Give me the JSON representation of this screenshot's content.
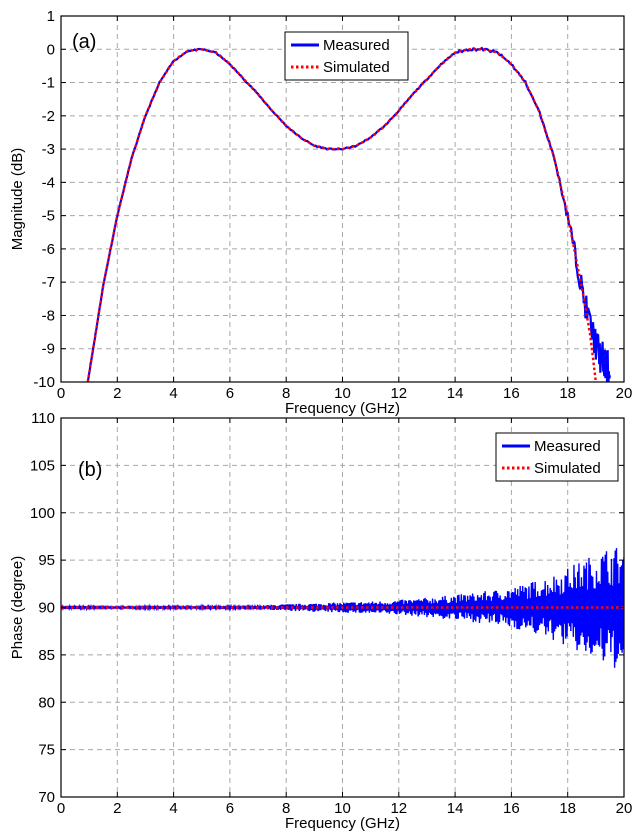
{
  "chart_data": [
    {
      "type": "line",
      "panel_label": "(a)",
      "xlabel": "Frequency (GHz)",
      "ylabel": "Magnitude (dB)",
      "xlim": [
        0,
        20
      ],
      "ylim": [
        -10,
        1
      ],
      "xticks": [
        0,
        2,
        4,
        6,
        8,
        10,
        12,
        14,
        16,
        18,
        20
      ],
      "yticks": [
        -10,
        -9,
        -8,
        -7,
        -6,
        -5,
        -4,
        -3,
        -2,
        -1,
        0,
        1
      ],
      "grid": true,
      "legend_position": "top-center",
      "series": [
        {
          "name": "Measured",
          "color": "#0000ff",
          "style": "solid",
          "x": [
            0.95,
            1.2,
            1.5,
            2.0,
            2.5,
            3.0,
            3.5,
            4.0,
            4.5,
            5.0,
            5.5,
            6.0,
            6.5,
            7.0,
            7.5,
            8.0,
            8.5,
            9.0,
            9.5,
            10.0,
            10.5,
            11.0,
            11.5,
            12.0,
            12.5,
            13.0,
            13.5,
            14.0,
            14.5,
            15.0,
            15.5,
            16.0,
            16.5,
            17.0,
            17.5,
            18.0,
            18.3,
            18.6,
            18.9,
            19.1,
            19.3,
            19.5
          ],
          "y": [
            -10.0,
            -8.7,
            -7.1,
            -5.0,
            -3.3,
            -2.0,
            -1.0,
            -0.35,
            -0.05,
            0.0,
            -0.1,
            -0.45,
            -0.9,
            -1.35,
            -1.85,
            -2.3,
            -2.65,
            -2.9,
            -3.0,
            -3.0,
            -2.9,
            -2.65,
            -2.3,
            -1.85,
            -1.35,
            -0.9,
            -0.45,
            -0.1,
            0.0,
            0.0,
            -0.1,
            -0.45,
            -1.0,
            -1.9,
            -3.2,
            -5.0,
            -6.3,
            -7.6,
            -8.6,
            -9.1,
            -9.5,
            -9.8
          ]
        },
        {
          "name": "Simulated",
          "color": "#ff0000",
          "style": "dotted",
          "x": [
            0.95,
            1.2,
            1.5,
            2.0,
            2.5,
            3.0,
            3.5,
            4.0,
            4.5,
            5.0,
            5.5,
            6.0,
            6.5,
            7.0,
            7.5,
            8.0,
            8.5,
            9.0,
            9.5,
            10.0,
            10.5,
            11.0,
            11.5,
            12.0,
            12.5,
            13.0,
            13.5,
            14.0,
            14.5,
            15.0,
            15.5,
            16.0,
            16.5,
            17.0,
            17.5,
            18.0,
            18.3,
            18.6,
            18.8,
            19.0
          ],
          "y": [
            -10.0,
            -8.7,
            -7.1,
            -5.0,
            -3.3,
            -2.0,
            -1.0,
            -0.35,
            -0.05,
            0.0,
            -0.1,
            -0.45,
            -0.9,
            -1.35,
            -1.85,
            -2.3,
            -2.65,
            -2.9,
            -3.0,
            -3.0,
            -2.9,
            -2.65,
            -2.3,
            -1.85,
            -1.35,
            -0.9,
            -0.45,
            -0.1,
            0.0,
            0.0,
            -0.1,
            -0.45,
            -1.0,
            -1.9,
            -3.2,
            -5.0,
            -6.3,
            -7.6,
            -8.6,
            -10.0
          ]
        }
      ]
    },
    {
      "type": "line",
      "panel_label": "(b)",
      "xlabel": "Frequency (GHz)",
      "ylabel": "Phase (degree)",
      "xlim": [
        0,
        20
      ],
      "ylim": [
        70,
        110
      ],
      "xticks": [
        0,
        2,
        4,
        6,
        8,
        10,
        12,
        14,
        16,
        18,
        20
      ],
      "yticks": [
        70,
        75,
        80,
        85,
        90,
        95,
        100,
        105,
        110
      ],
      "grid": true,
      "legend_position": "top-right",
      "series": [
        {
          "name": "Measured",
          "color": "#0000ff",
          "style": "solid",
          "x": [
            0.0,
            0.5,
            1.0,
            1.5,
            2.0,
            2.5,
            3.0,
            3.5,
            4.0,
            4.5,
            5.0,
            5.5,
            6.0,
            6.5,
            7.0,
            7.5,
            8.0,
            8.5,
            9.0,
            9.5,
            10.0,
            10.5,
            11.0,
            11.5,
            12.0,
            12.5,
            13.0,
            13.5,
            14.0,
            14.5,
            15.0,
            15.5,
            16.0,
            16.5,
            17.0,
            17.5,
            18.0,
            18.5,
            19.0,
            19.5,
            20.0
          ],
          "y": [
            90.0,
            90.2,
            90.0,
            90.1,
            90.0,
            90.1,
            90.0,
            90.2,
            90.0,
            90.1,
            90.0,
            90.2,
            90.0,
            90.1,
            90.0,
            90.3,
            90.0,
            90.4,
            90.0,
            90.5,
            90.0,
            90.6,
            90.0,
            90.7,
            90.0,
            90.9,
            90.0,
            91.2,
            90.0,
            91.5,
            90.0,
            91.9,
            90.0,
            92.5,
            90.0,
            93.5,
            90.0,
            95.0,
            90.0,
            96.5,
            90.0
          ]
        },
        {
          "name": "Simulated",
          "color": "#ff0000",
          "style": "dotted",
          "x": [
            0,
            20
          ],
          "y": [
            90,
            90
          ]
        }
      ]
    }
  ]
}
